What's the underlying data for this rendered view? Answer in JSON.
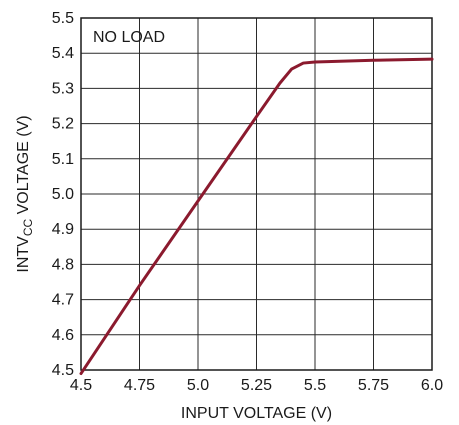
{
  "chart_data": {
    "type": "line",
    "xlabel": "INPUT VOLTAGE (V)",
    "ylabel": {
      "prefix": "INTV",
      "subscript": "CC",
      "suffix": " VOLTAGE (V)"
    },
    "xlim": [
      4.5,
      6.0
    ],
    "ylim": [
      4.5,
      5.5
    ],
    "x_ticks": [
      4.5,
      4.75,
      5.0,
      5.25,
      5.5,
      5.75,
      6.0
    ],
    "x_tick_labels": [
      "4.5",
      "4.75",
      "5.0",
      "5.25",
      "5.5",
      "5.75",
      "6.0"
    ],
    "y_ticks": [
      4.5,
      4.6,
      4.7,
      4.8,
      4.9,
      5.0,
      5.1,
      5.2,
      5.3,
      5.4,
      5.5
    ],
    "y_tick_labels": [
      "4.5",
      "4.6",
      "4.7",
      "4.8",
      "4.9",
      "5.0",
      "5.1",
      "5.2",
      "5.3",
      "5.4",
      "5.5"
    ],
    "grid": true,
    "annotation": "NO LOAD",
    "series": [
      {
        "color": "#8b1a2e",
        "x": [
          4.5,
          4.75,
          5.0,
          5.25,
          5.35,
          5.4,
          5.45,
          5.5,
          5.75,
          6.0
        ],
        "y": [
          4.49,
          4.74,
          4.98,
          5.22,
          5.315,
          5.355,
          5.372,
          5.375,
          5.38,
          5.383
        ]
      }
    ]
  }
}
